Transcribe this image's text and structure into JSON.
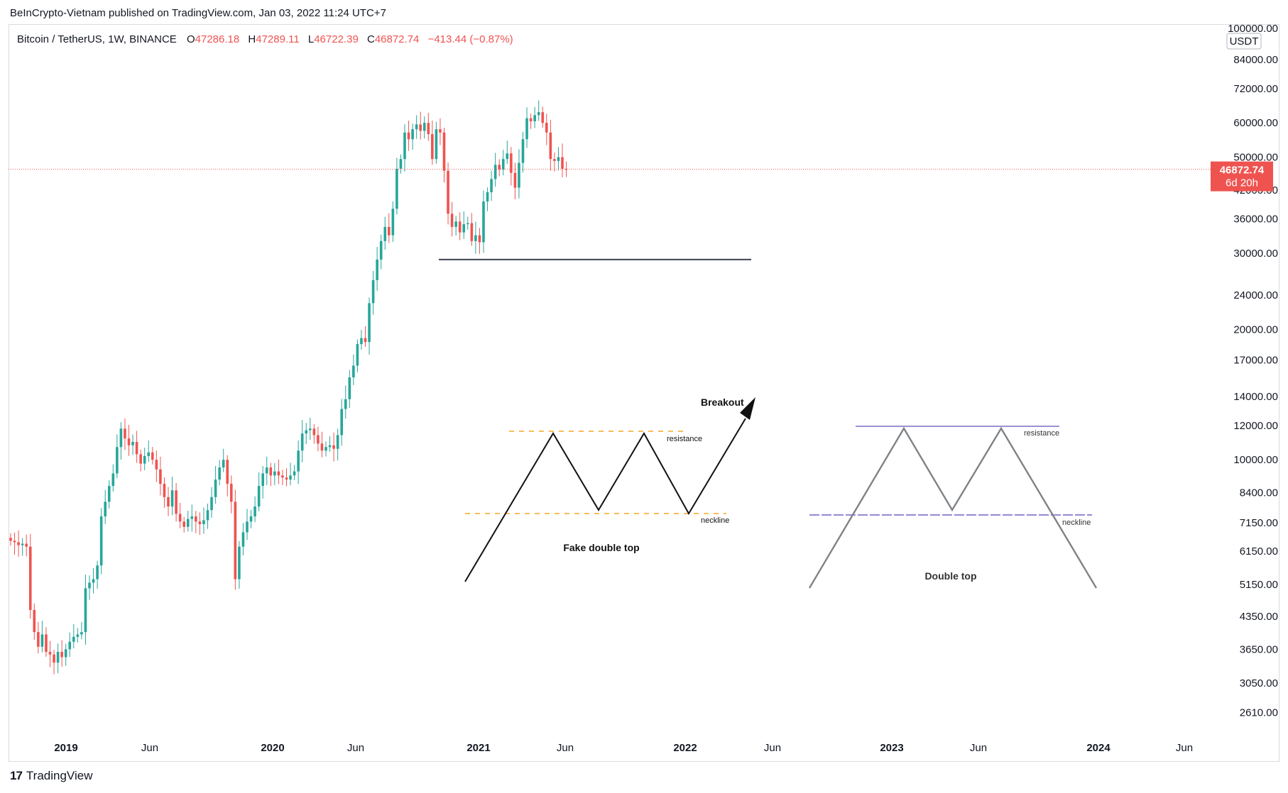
{
  "header": {
    "published_by": "BeInCrypto-Vietnam published on TradingView.com, Jan 03, 2022 11:24 UTC+7"
  },
  "legend": {
    "symbol": "Bitcoin / TetherUS, 1W, BINANCE",
    "o_label": "O",
    "o_value": "47286.18",
    "h_label": "H",
    "h_value": "47289.11",
    "l_label": "L",
    "l_value": "46722.39",
    "c_label": "C",
    "c_value": "46872.74",
    "change": "−413.44 (−0.87%)"
  },
  "footer": {
    "brand": "TradingView",
    "logo": "17"
  },
  "colors": {
    "up": "#26a69a",
    "down": "#ef5350",
    "price_line": "#ef5350",
    "support_line": "#4a4e5a",
    "dashed_orange": "#f5a623",
    "purple_line": "#9b8fd6",
    "pattern_gray": "#7f8286"
  },
  "chart_data": {
    "type": "candlestick",
    "symbol": "Bitcoin / TetherUS",
    "interval": "1W",
    "exchange": "BINANCE",
    "scale": "log",
    "currency": "USDT",
    "ylim": [
      2300,
      100000
    ],
    "y_ticks": [
      "100000.00",
      "84000.00",
      "72000.00",
      "60000.00",
      "50000.00",
      "42000.00",
      "36000.00",
      "30000.00",
      "24000.00",
      "20000.00",
      "17000.00",
      "14000.00",
      "12000.00",
      "10000.00",
      "8400.00",
      "7150.00",
      "6150.00",
      "5150.00",
      "4350.00",
      "3650.00",
      "3050.00",
      "2610.00"
    ],
    "x_ticks": [
      "2019",
      "Jun",
      "2020",
      "Jun",
      "2021",
      "Jun",
      "2022",
      "Jun",
      "2023",
      "Jun",
      "2024",
      "Jun"
    ],
    "x_ticks_bold": [
      "2019",
      "2020",
      "2021",
      "2022",
      "2023",
      "2024"
    ],
    "last_price": {
      "value": 46872.74,
      "label": "46872.74",
      "countdown": "6d 20h"
    },
    "support_level": 29000,
    "closes": [
      6500,
      6450,
      6350,
      6400,
      6300,
      4500,
      4000,
      3700,
      3950,
      3600,
      3550,
      3400,
      3600,
      3500,
      3650,
      3800,
      3900,
      3950,
      4000,
      5050,
      5200,
      5300,
      5700,
      7400,
      8000,
      8700,
      9300,
      10700,
      11800,
      11200,
      10800,
      11000,
      10300,
      9800,
      10200,
      10400,
      10000,
      9500,
      8800,
      8200,
      7800,
      8500,
      7500,
      7200,
      7000,
      7300,
      7400,
      7200,
      7100,
      7250,
      7650,
      8200,
      9000,
      9600,
      10000,
      8800,
      8000,
      5300,
      6300,
      6800,
      7200,
      7400,
      7800,
      8700,
      9300,
      9600,
      9200,
      9400,
      9200,
      9100,
      9000,
      9200,
      9400,
      10500,
      11500,
      11700,
      11800,
      11400,
      10900,
      10500,
      10700,
      10800,
      10600,
      11400,
      13100,
      13800,
      15500,
      16500,
      18500,
      19100,
      18700,
      23000,
      26000,
      29000,
      32000,
      34500,
      33000,
      38000,
      47000,
      49500,
      57000,
      55000,
      58000,
      59500,
      57500,
      60000,
      56500,
      49500,
      58000,
      57000,
      46500,
      37000,
      34500,
      35500,
      33500,
      35000,
      35200,
      32000,
      33000,
      31800,
      39500,
      41500,
      44500,
      48000,
      46800,
      49500,
      51000,
      46000,
      42500,
      48500,
      55000,
      61500,
      60500,
      62500,
      63500,
      60000,
      57000,
      49500,
      49000,
      50000,
      47000,
      46872
    ]
  },
  "annotations": {
    "fake_pattern": {
      "title": "Fake double top",
      "resistance": "resistance",
      "neckline": "neckline",
      "breakout": "Breakout"
    },
    "real_pattern": {
      "title": "Double top",
      "resistance": "resistance",
      "neckline": "neckline"
    }
  }
}
